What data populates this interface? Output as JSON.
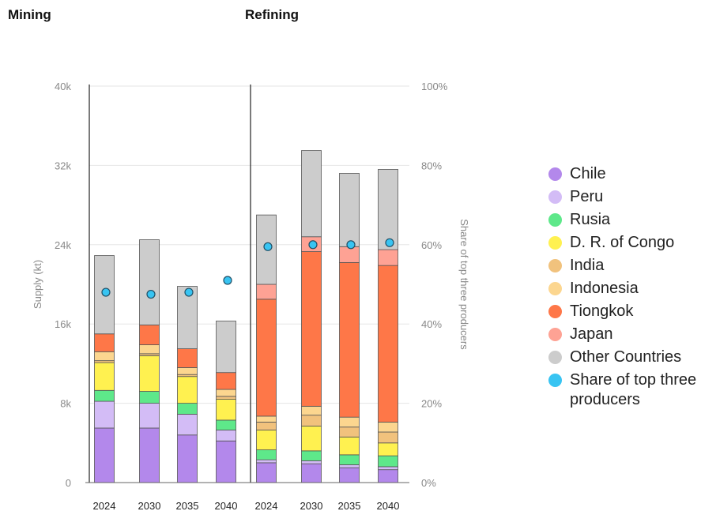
{
  "titles": {
    "mining": "Mining",
    "refining": "Refining"
  },
  "chart_data": {
    "type": "bar",
    "stacked": true,
    "panels": [
      "Mining",
      "Refining"
    ],
    "categories": [
      "2024",
      "2030",
      "2035",
      "2040"
    ],
    "ylabel": "Supply (kt)",
    "y2label": "Share of top three producers",
    "ylim": [
      0,
      40000
    ],
    "y2lim": [
      0,
      100
    ],
    "yticks": [
      "0",
      "8k",
      "16k",
      "24k",
      "32k",
      "40k"
    ],
    "y2ticks": [
      "0%",
      "20%",
      "40%",
      "60%",
      "80%",
      "100%"
    ],
    "grid": true,
    "legend_position": "right",
    "series": [
      {
        "name": "Chile",
        "color": "#b388eb",
        "mining": [
          5500,
          5500,
          4800,
          4200
        ],
        "refining": [
          2000,
          1900,
          1500,
          1300
        ]
      },
      {
        "name": "Peru",
        "color": "#d3bcf6",
        "mining": [
          2700,
          2500,
          2100,
          1100
        ],
        "refining": [
          300,
          300,
          300,
          300
        ]
      },
      {
        "name": "Rusia",
        "color": "#5ee88a",
        "mining": [
          1100,
          1200,
          1100,
          1000
        ],
        "refining": [
          1000,
          1000,
          1000,
          1100
        ]
      },
      {
        "name": "D. R. of Congo",
        "color": "#fff150",
        "mining": [
          2800,
          3600,
          2700,
          2100
        ],
        "refining": [
          2000,
          2500,
          1800,
          1300
        ]
      },
      {
        "name": "India",
        "color": "#f1c27d",
        "mining": [
          200,
          200,
          200,
          300
        ],
        "refining": [
          800,
          1100,
          1000,
          1100
        ]
      },
      {
        "name": "Indonesia",
        "color": "#fcd68f",
        "mining": [
          900,
          900,
          700,
          700
        ],
        "refining": [
          600,
          900,
          1000,
          1000
        ]
      },
      {
        "name": "Tiongkok",
        "color": "#fe7748",
        "mining": [
          1800,
          2000,
          1900,
          1700
        ],
        "refining": [
          11800,
          15600,
          15600,
          15800
        ]
      },
      {
        "name": "Japan",
        "color": "#fea294",
        "mining": [
          0,
          0,
          0,
          0
        ],
        "refining": [
          1500,
          1500,
          1600,
          1600
        ]
      },
      {
        "name": "Other Countries",
        "color": "#cccccc",
        "mining": [
          7900,
          8600,
          6300,
          5200
        ],
        "refining": [
          7000,
          8700,
          7400,
          8100
        ]
      }
    ],
    "share_series": {
      "name": "Share of top three producers",
      "color": "#38c4f2",
      "mining": [
        48,
        47.5,
        48,
        51
      ],
      "refining": [
        59.5,
        60,
        60,
        60.5
      ]
    }
  }
}
